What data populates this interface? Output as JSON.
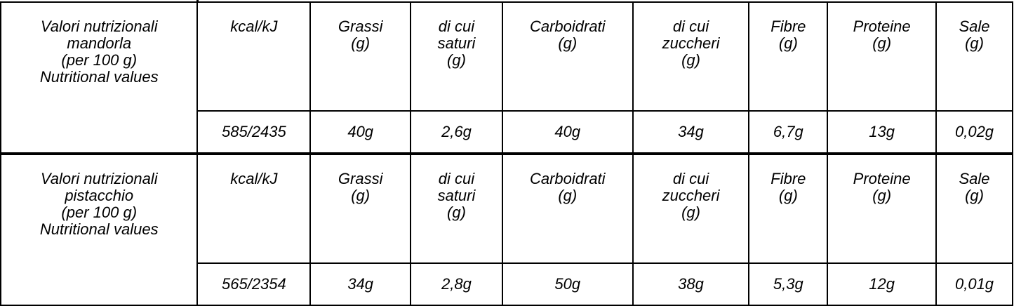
{
  "tables": [
    {
      "label": [
        "Valori nutrizionali",
        "mandorla",
        "(per 100 g)",
        "Nutritional values"
      ],
      "headers": [
        [
          "kcal/kJ"
        ],
        [
          "Grassi",
          "(g)"
        ],
        [
          "di cui",
          "saturi",
          "(g)"
        ],
        [
          "Carboidrati",
          "(g)"
        ],
        [
          "di cui",
          "zuccheri",
          "(g)"
        ],
        [
          "Fibre",
          "(g)"
        ],
        [
          "Proteine",
          "(g)"
        ],
        [
          "Sale",
          "(g)"
        ]
      ],
      "values": [
        "585/2435",
        "40g",
        "2,6g",
        "40g",
        "34g",
        "6,7g",
        "13g",
        "0,02g"
      ]
    },
    {
      "label": [
        "Valori nutrizionali",
        "pistacchio",
        "(per 100 g)",
        "Nutritional values"
      ],
      "headers": [
        [
          "kcal/kJ"
        ],
        [
          "Grassi",
          "(g)"
        ],
        [
          "di cui",
          "saturi",
          "(g)"
        ],
        [
          "Carboidrati",
          "(g)"
        ],
        [
          "di cui",
          "zuccheri",
          "(g)"
        ],
        [
          "Fibre",
          "(g)"
        ],
        [
          "Proteine",
          "(g)"
        ],
        [
          "Sale",
          "(g)"
        ]
      ],
      "values": [
        "565/2354",
        "34g",
        "2,8g",
        "50g",
        "38g",
        "5,3g",
        "12g",
        "0,01g"
      ]
    }
  ]
}
